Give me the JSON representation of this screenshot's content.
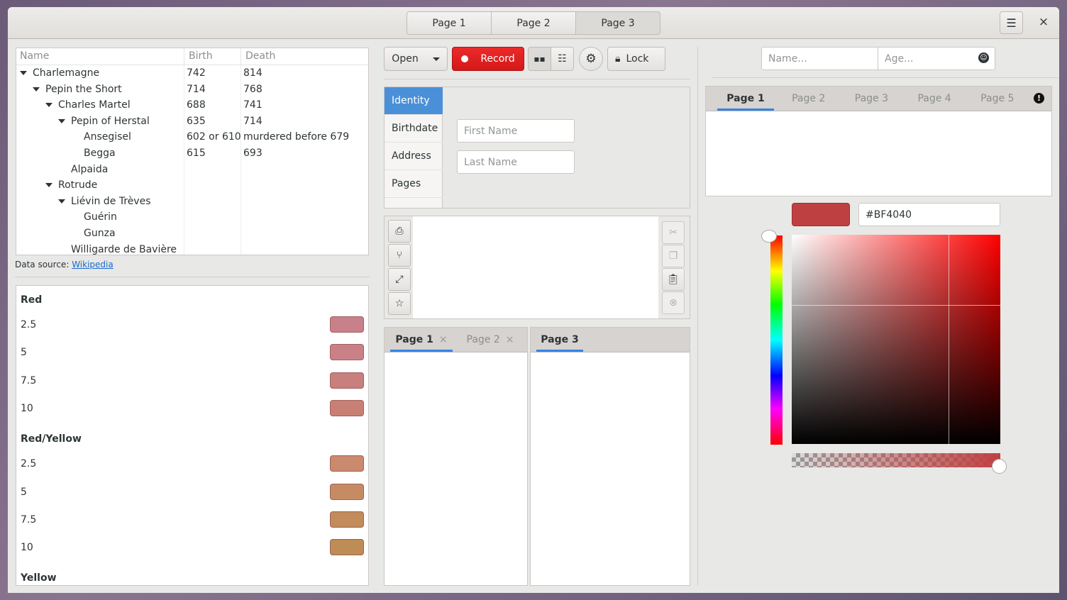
{
  "header": {
    "stack_pages": [
      "Page 1",
      "Page 2",
      "Page 3"
    ],
    "active_page": 2,
    "menu_icon": "hamburger-menu-icon",
    "close_label": "×"
  },
  "tree": {
    "columns": [
      "Name",
      "Birth",
      "Death"
    ],
    "rows": [
      {
        "name": "Charlemagne",
        "birth": "742",
        "death": "814",
        "depth": 0,
        "expander": true
      },
      {
        "name": "Pepin the Short",
        "birth": "714",
        "death": "768",
        "depth": 1,
        "expander": true
      },
      {
        "name": "Charles Martel",
        "birth": "688",
        "death": "741",
        "depth": 2,
        "expander": true
      },
      {
        "name": "Pepin of Herstal",
        "birth": "635",
        "death": "714",
        "depth": 3,
        "expander": true
      },
      {
        "name": "Ansegisel",
        "birth": "602 or 610",
        "death": "murdered before 679",
        "depth": 4,
        "expander": false
      },
      {
        "name": "Begga",
        "birth": "615",
        "death": "693",
        "depth": 4,
        "expander": false
      },
      {
        "name": "Alpaida",
        "birth": "",
        "death": "",
        "depth": 3,
        "expander": false
      },
      {
        "name": "Rotrude",
        "birth": "",
        "death": "",
        "depth": 2,
        "expander": true
      },
      {
        "name": "Liévin de Trèves",
        "birth": "",
        "death": "",
        "depth": 3,
        "expander": true
      },
      {
        "name": "Guérin",
        "birth": "",
        "death": "",
        "depth": 4,
        "expander": false
      },
      {
        "name": "Gunza",
        "birth": "",
        "death": "",
        "depth": 4,
        "expander": false
      },
      {
        "name": "Willigarde de Bavière",
        "birth": "",
        "death": "",
        "depth": 3,
        "expander": false
      }
    ],
    "source_label": "Data source:",
    "source_link": "Wikipedia"
  },
  "colors": {
    "groups": [
      {
        "title": "Red",
        "items": [
          {
            "label": "2.5",
            "color": "#c8808a"
          },
          {
            "label": "5",
            "color": "#c98086"
          },
          {
            "label": "7.5",
            "color": "#c97f7e"
          },
          {
            "label": "10",
            "color": "#c98074"
          }
        ]
      },
      {
        "title": "Red/Yellow",
        "items": [
          {
            "label": "2.5",
            "color": "#c98a6d"
          },
          {
            "label": "5",
            "color": "#c68b62"
          },
          {
            "label": "7.5",
            "color": "#c28b5a"
          },
          {
            "label": "10",
            "color": "#be8c55"
          }
        ]
      },
      {
        "title": "Yellow",
        "items": []
      }
    ]
  },
  "toolbar": {
    "open": "Open",
    "record": "Record",
    "lock": "Lock",
    "record_color": "#e01b24"
  },
  "stack_sidebar": {
    "items": [
      "Identity",
      "Birthdate",
      "Address",
      "Pages"
    ],
    "active": 0,
    "first_name_placeholder": "First Name",
    "last_name_placeholder": "Last Name"
  },
  "text_tools": {
    "left": [
      "document-print-icon",
      "network-icon",
      "fullscreen-icon",
      "star-icon"
    ],
    "right": [
      "cut-icon",
      "copy-icon",
      "paste-icon",
      "clear-icon"
    ]
  },
  "notebook_left": {
    "tabs": [
      "Page 1",
      "Page 2"
    ],
    "active": 0,
    "close": "×"
  },
  "notebook_right": {
    "tabs": [
      "Page 3"
    ],
    "active": 0
  },
  "right": {
    "name_placeholder": "Name...",
    "age_placeholder": "Age...",
    "tabs": [
      "Page 1",
      "Page 2",
      "Page 3",
      "Page 4",
      "Page 5"
    ],
    "active_tab": 0,
    "tab_action": "!"
  },
  "color_picker": {
    "hex": "#BF4040",
    "color": "#bf4040",
    "hue_deg": 0,
    "alpha": 1.0
  }
}
